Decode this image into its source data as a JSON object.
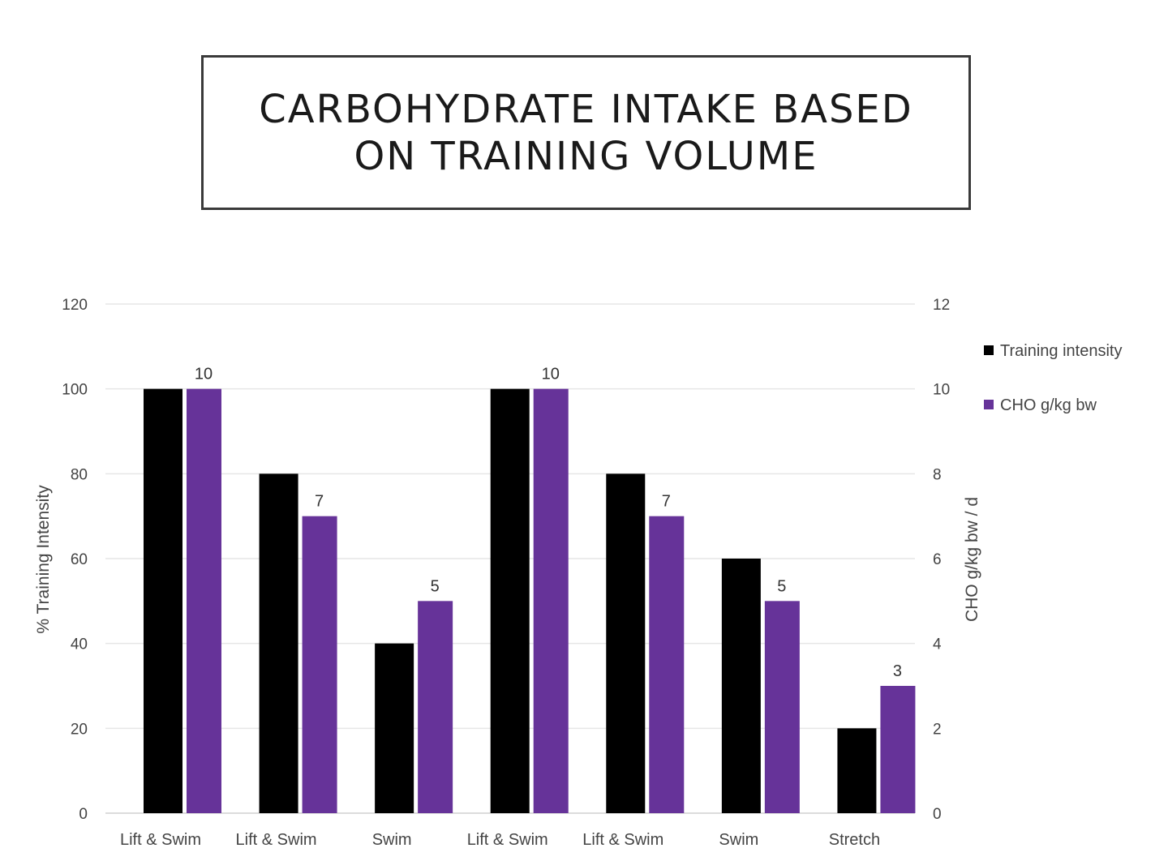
{
  "chart_data": {
    "type": "bar",
    "title": "CARBOHYDRATE INTAKE BASED ON TRAINING VOLUME",
    "categories": [
      "Lift & Swim",
      "Lift & Swim",
      "Swim",
      "Lift & Swim",
      "Lift & Swim",
      "Swim",
      "Stretch"
    ],
    "series": [
      {
        "name": "Training intensity",
        "axis": "left",
        "color": "#000000",
        "values": [
          100,
          80,
          40,
          100,
          80,
          60,
          20
        ],
        "data_labels": false
      },
      {
        "name": "CHO g/kg bw",
        "axis": "right",
        "color": "#663399",
        "values": [
          10,
          7,
          5,
          10,
          7,
          5,
          3
        ],
        "data_labels": true
      }
    ],
    "ylabel": "% Training Intensity",
    "ylabel_right": "CHO g/kg bw / d",
    "ylim": [
      0,
      120
    ],
    "ylim_right": [
      0,
      12
    ],
    "yticks": [
      0,
      20,
      40,
      60,
      80,
      100,
      120
    ],
    "yticks_right": [
      0,
      2,
      4,
      6,
      8,
      10,
      12
    ],
    "grid": true,
    "legend": "right"
  }
}
